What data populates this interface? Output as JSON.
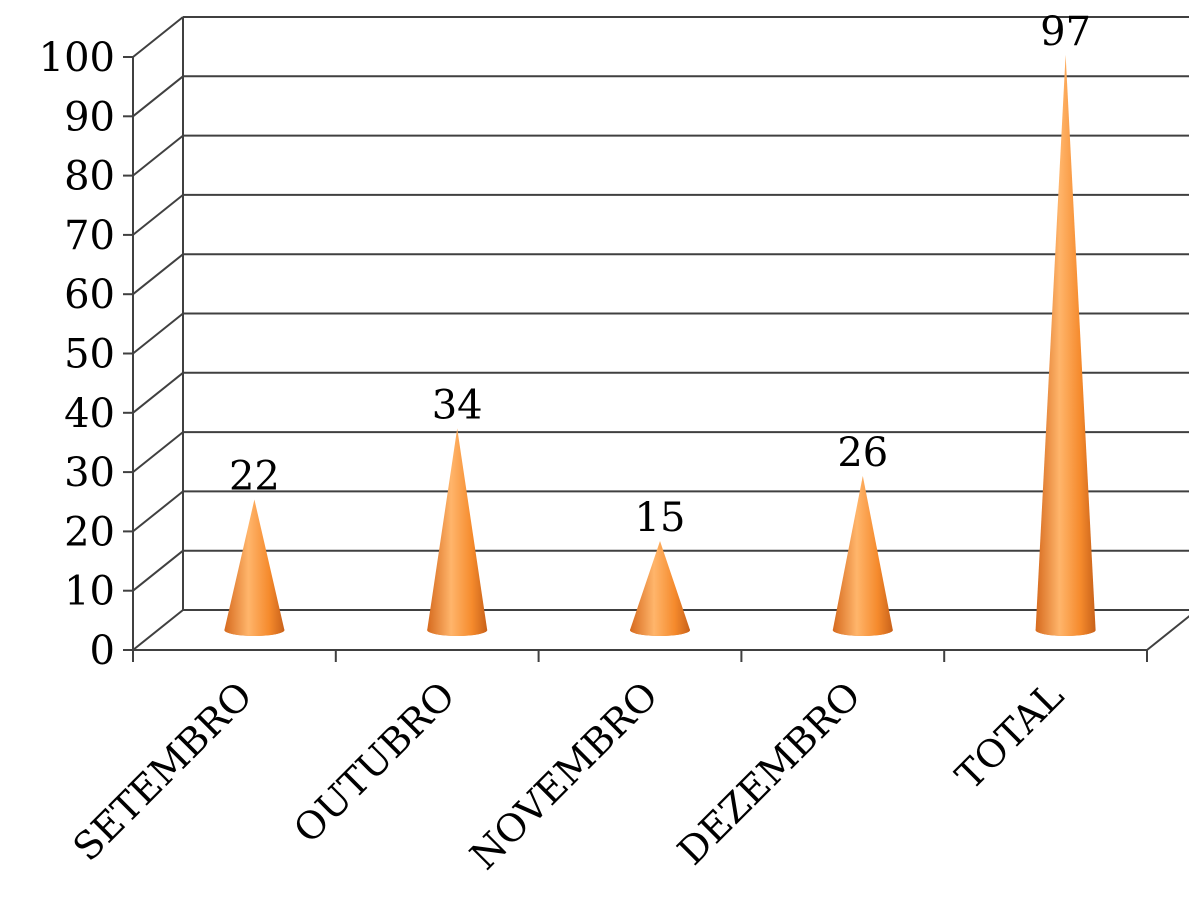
{
  "chart_data": {
    "type": "bar",
    "subtype": "3d-cone",
    "title": "",
    "xlabel": "",
    "ylabel": "",
    "categories": [
      "SETEMBRO",
      "OUTUBRO",
      "NOVEMBRO",
      "DEZEMBRO",
      "TOTAL"
    ],
    "values": [
      22,
      34,
      15,
      26,
      97
    ],
    "data_labels": [
      "22",
      "34",
      "15",
      "26",
      "97"
    ],
    "ylim": [
      0,
      100
    ],
    "ytick_step": 10,
    "ytick_labels": [
      "0",
      "10",
      "20",
      "30",
      "40",
      "50",
      "60",
      "70",
      "80",
      "90",
      "100"
    ],
    "grid": true,
    "legend": "none",
    "colors": {
      "cone_light": "#ffb56b",
      "cone_mid": "#f58a2c",
      "cone_dark": "#c8611a",
      "gridline": "#404040"
    }
  }
}
